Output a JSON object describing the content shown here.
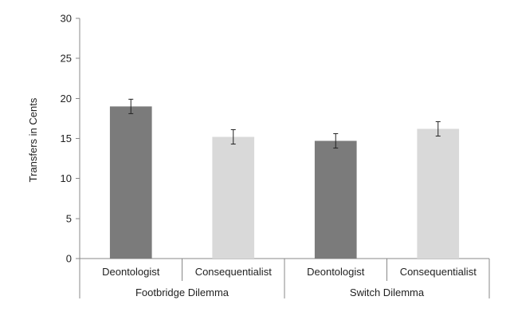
{
  "chart_data": {
    "type": "bar",
    "title": "",
    "ylabel": "Transfers in Cents",
    "ylim": [
      0,
      30
    ],
    "yticks": [
      "0",
      "5",
      "10",
      "15",
      "20",
      "25",
      "30"
    ],
    "grid": false,
    "legend": "none",
    "groups": [
      {
        "name": "Footbridge Dilemma",
        "bars": [
          {
            "category": "Deontologist",
            "value": 19.0,
            "error": 0.9,
            "color": "#7b7b7b"
          },
          {
            "category": "Consequentialist",
            "value": 15.2,
            "error": 0.9,
            "color": "#d9d9d9"
          }
        ]
      },
      {
        "name": "Switch Dilemma",
        "bars": [
          {
            "category": "Deontologist",
            "value": 14.7,
            "error": 0.9,
            "color": "#7b7b7b"
          },
          {
            "category": "Consequentialist",
            "value": 16.2,
            "error": 0.9,
            "color": "#d9d9d9"
          }
        ]
      }
    ]
  }
}
